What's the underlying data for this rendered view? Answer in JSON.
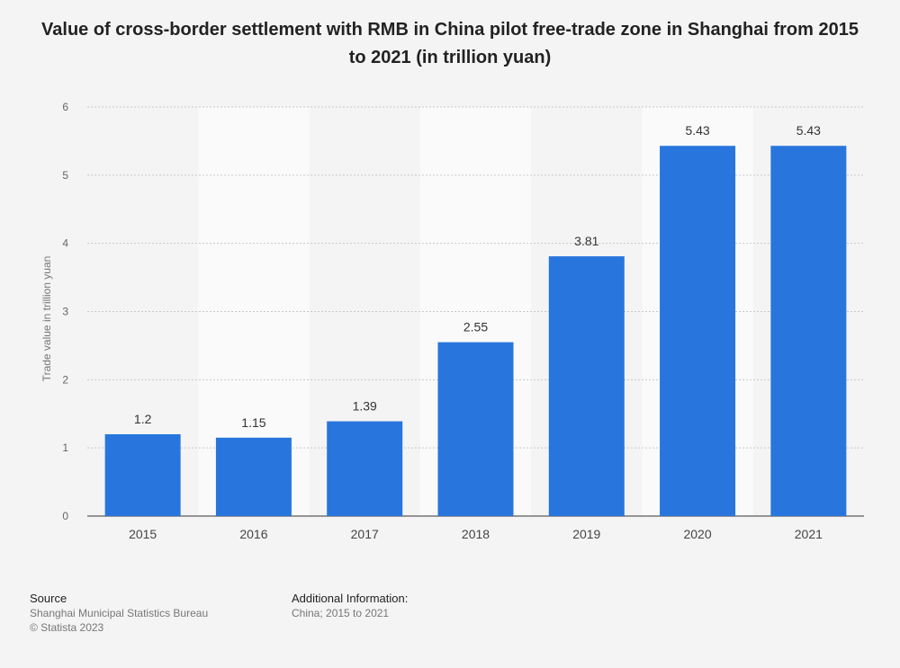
{
  "chart_data": {
    "type": "bar",
    "title": "Value of cross-border settlement with RMB in China pilot free-trade zone in Shanghai from 2015 to 2021 (in trillion yuan)",
    "categories": [
      "2015",
      "2016",
      "2017",
      "2018",
      "2019",
      "2020",
      "2021"
    ],
    "values": [
      1.2,
      1.15,
      1.39,
      2.55,
      3.81,
      5.43,
      5.43
    ],
    "value_labels": [
      "1.2",
      "1.15",
      "1.39",
      "2.55",
      "3.81",
      "5.43",
      "5.43"
    ],
    "xlabel": "",
    "ylabel": "Trade value in trillion yuan",
    "ylim": [
      0,
      6
    ],
    "yticks": [
      "0",
      "1",
      "2",
      "3",
      "4",
      "5",
      "6"
    ],
    "grid": true,
    "bar_color": "#2876dd"
  },
  "footer": {
    "source_heading": "Source",
    "source_lines": [
      "Shanghai Municipal Statistics Bureau",
      "© Statista 2023"
    ],
    "info_heading": "Additional Information:",
    "info_lines": [
      "China; 2015 to 2021"
    ]
  }
}
